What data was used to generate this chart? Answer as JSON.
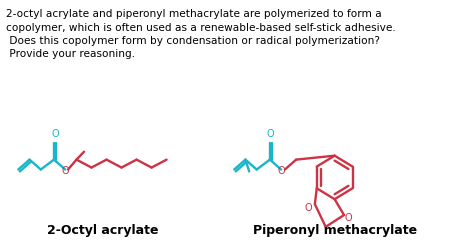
{
  "background_color": "#ffffff",
  "text_color": "#000000",
  "cyan_color": "#1ab5c8",
  "red_color": "#cc3344",
  "title_lines": [
    "2-octyl acrylate and piperonyl methacrylate are polymerized to form a",
    "copolymer, which is often used as a renewable-based self-stick adhesive.",
    " Does this copolymer form by condensation or radical polymerization?",
    " Provide your reasoning."
  ],
  "label1": "2-Octyl acrylate",
  "label2": "Piperonyl methacrylate",
  "text_fontsize": 7.6,
  "label_fontsize": 9.0,
  "lw": 1.7
}
